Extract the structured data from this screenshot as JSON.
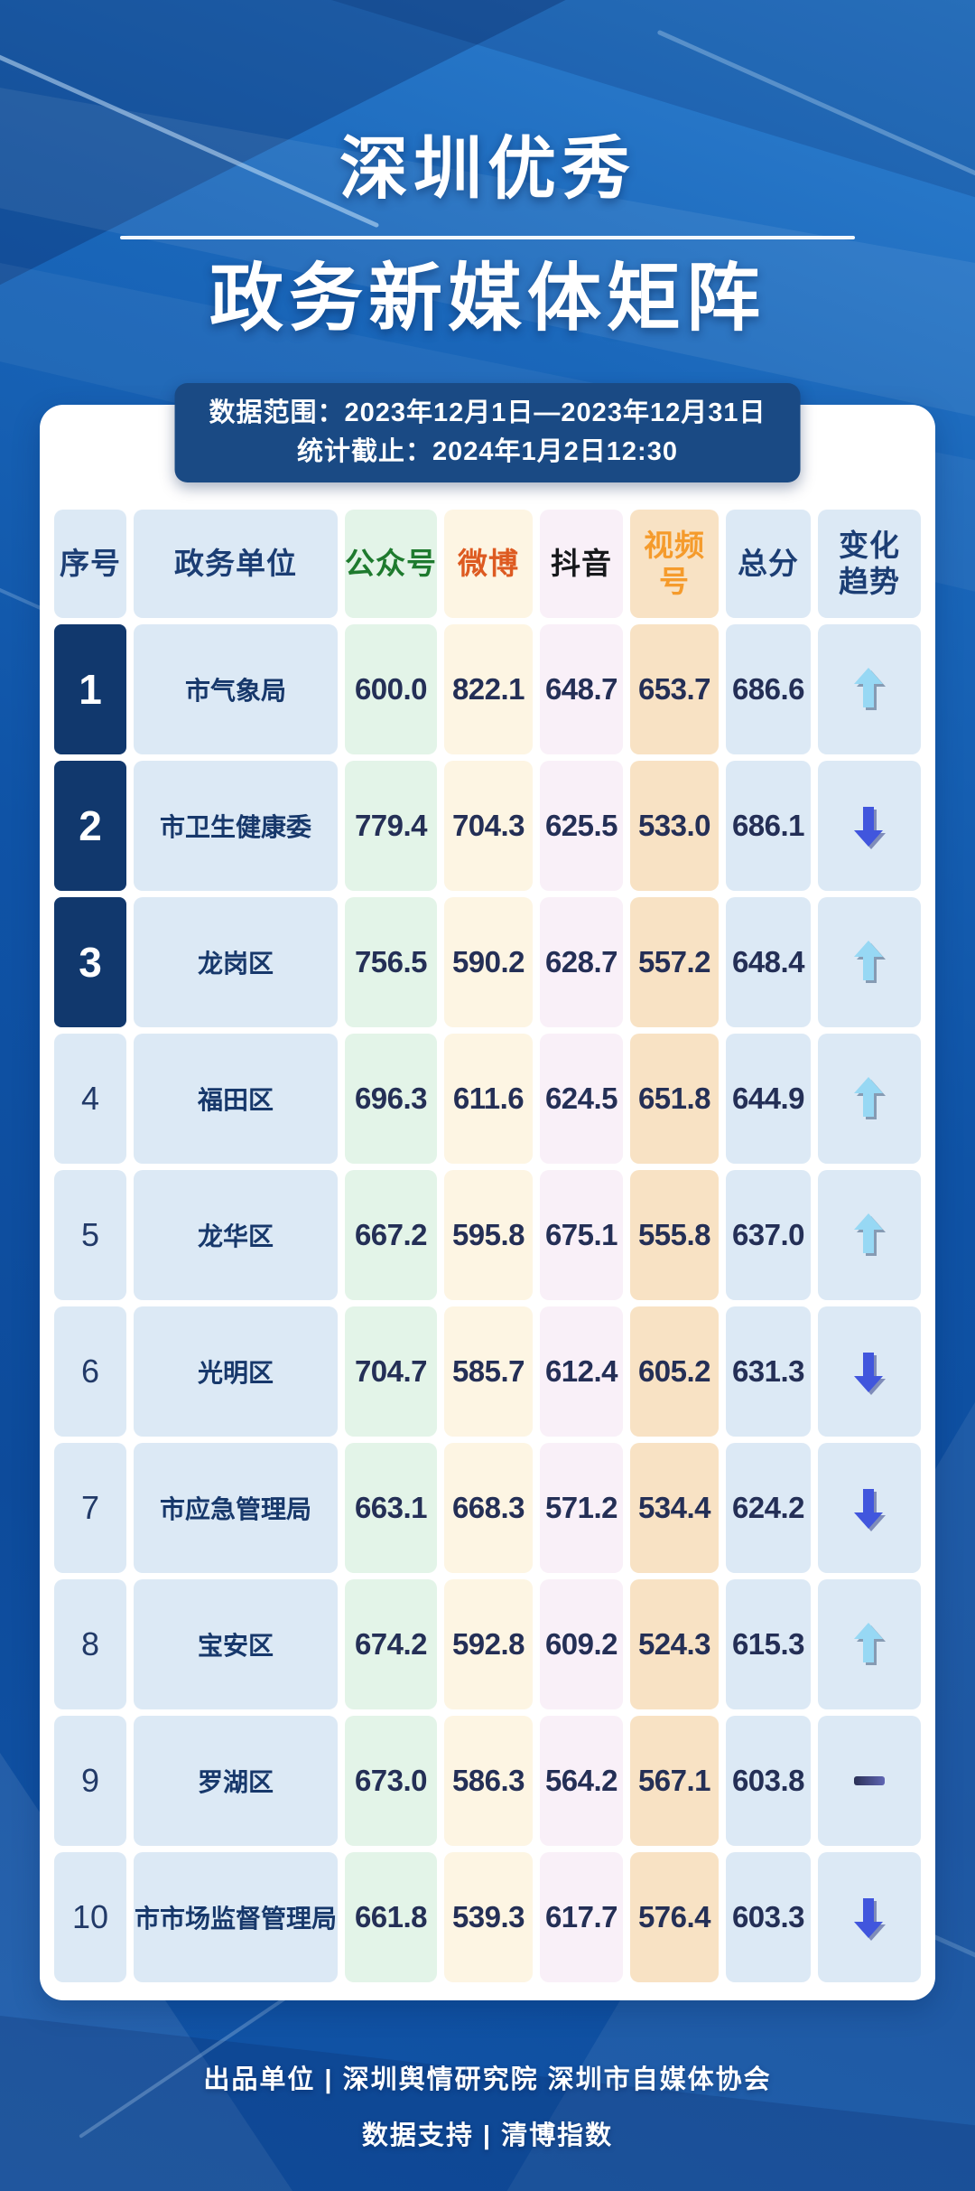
{
  "title": {
    "line1": "深圳优秀",
    "line2": "政务新媒体矩阵"
  },
  "meta": {
    "line1": "数据范围：2023年12月1日—2023年12月31日",
    "line2": "统计截止：2024年1月2日12:30"
  },
  "table": {
    "columns": [
      {
        "id": "rank",
        "label": "序号",
        "color": "#1c3e74",
        "bg": "#dce9f5"
      },
      {
        "id": "unit",
        "label": "政务单位",
        "color": "#1c3e74",
        "bg": "#dce9f5"
      },
      {
        "id": "wechat",
        "label": "公众号",
        "color": "#1e7a2e",
        "bg": "#e3f4e8"
      },
      {
        "id": "weibo",
        "label": "微博",
        "color": "#dd5a21",
        "bg": "#fdf5e3"
      },
      {
        "id": "douyin",
        "label": "抖音",
        "color": "#17191c",
        "bg": "#f9f0f8"
      },
      {
        "id": "video",
        "label": "视频号",
        "color": "#f59b2c",
        "bg": "#f8e2c4"
      },
      {
        "id": "total",
        "label": "总分",
        "color": "#1c3e74",
        "bg": "#dce9f5"
      },
      {
        "id": "trend",
        "label": "变化\n趋势",
        "color": "#1c3e74",
        "bg": "#dce9f5"
      }
    ],
    "rows": [
      {
        "rank": "1",
        "unit": "市气象局",
        "wechat": "600.0",
        "weibo": "822.1",
        "douyin": "648.7",
        "video": "653.7",
        "total": "686.6",
        "trend": "up"
      },
      {
        "rank": "2",
        "unit": "市卫生健康委",
        "wechat": "779.4",
        "weibo": "704.3",
        "douyin": "625.5",
        "video": "533.0",
        "total": "686.1",
        "trend": "down"
      },
      {
        "rank": "3",
        "unit": "龙岗区",
        "wechat": "756.5",
        "weibo": "590.2",
        "douyin": "628.7",
        "video": "557.2",
        "total": "648.4",
        "trend": "up"
      },
      {
        "rank": "4",
        "unit": "福田区",
        "wechat": "696.3",
        "weibo": "611.6",
        "douyin": "624.5",
        "video": "651.8",
        "total": "644.9",
        "trend": "up"
      },
      {
        "rank": "5",
        "unit": "龙华区",
        "wechat": "667.2",
        "weibo": "595.8",
        "douyin": "675.1",
        "video": "555.8",
        "total": "637.0",
        "trend": "up"
      },
      {
        "rank": "6",
        "unit": "光明区",
        "wechat": "704.7",
        "weibo": "585.7",
        "douyin": "612.4",
        "video": "605.2",
        "total": "631.3",
        "trend": "down"
      },
      {
        "rank": "7",
        "unit": "市应急管理局",
        "wechat": "663.1",
        "weibo": "668.3",
        "douyin": "571.2",
        "video": "534.4",
        "total": "624.2",
        "trend": "down"
      },
      {
        "rank": "8",
        "unit": "宝安区",
        "wechat": "674.2",
        "weibo": "592.8",
        "douyin": "609.2",
        "video": "524.3",
        "total": "615.3",
        "trend": "up"
      },
      {
        "rank": "9",
        "unit": "罗湖区",
        "wechat": "673.0",
        "weibo": "586.3",
        "douyin": "564.2",
        "video": "567.1",
        "total": "603.8",
        "trend": "flat"
      },
      {
        "rank": "10",
        "unit": "市市场监督管理局",
        "wechat": "661.8",
        "weibo": "539.3",
        "douyin": "617.7",
        "video": "576.4",
        "total": "603.3",
        "trend": "down"
      }
    ]
  },
  "trend_colors": {
    "up": "#97d8f4",
    "down": "#4156dd",
    "flat": "#454b84"
  },
  "footer": {
    "line1": "出品单位 | 深圳舆情研究院 深圳市自媒体协会",
    "line2": "数据支持 | 清博指数"
  },
  "chart_data": {
    "type": "table",
    "title": "深圳优秀政务新媒体矩阵",
    "subtitle_range": "2023年12月1日—2023年12月31日",
    "as_of": "2024年1月2日12:30",
    "columns": [
      "序号",
      "政务单位",
      "公众号",
      "微博",
      "抖音",
      "视频号",
      "总分",
      "变化趋势"
    ],
    "rows": [
      [
        1,
        "市气象局",
        600.0,
        822.1,
        648.7,
        653.7,
        686.6,
        "up"
      ],
      [
        2,
        "市卫生健康委",
        779.4,
        704.3,
        625.5,
        533.0,
        686.1,
        "down"
      ],
      [
        3,
        "龙岗区",
        756.5,
        590.2,
        628.7,
        557.2,
        648.4,
        "up"
      ],
      [
        4,
        "福田区",
        696.3,
        611.6,
        624.5,
        651.8,
        644.9,
        "up"
      ],
      [
        5,
        "龙华区",
        667.2,
        595.8,
        675.1,
        555.8,
        637.0,
        "up"
      ],
      [
        6,
        "光明区",
        704.7,
        585.7,
        612.4,
        605.2,
        631.3,
        "down"
      ],
      [
        7,
        "市应急管理局",
        663.1,
        668.3,
        571.2,
        534.4,
        624.2,
        "down"
      ],
      [
        8,
        "宝安区",
        674.2,
        592.8,
        609.2,
        524.3,
        615.3,
        "up"
      ],
      [
        9,
        "罗湖区",
        673.0,
        586.3,
        564.2,
        567.1,
        603.8,
        "flat"
      ],
      [
        10,
        "市市场监督管理局",
        661.8,
        539.3,
        617.7,
        576.4,
        603.3,
        "down"
      ]
    ]
  }
}
